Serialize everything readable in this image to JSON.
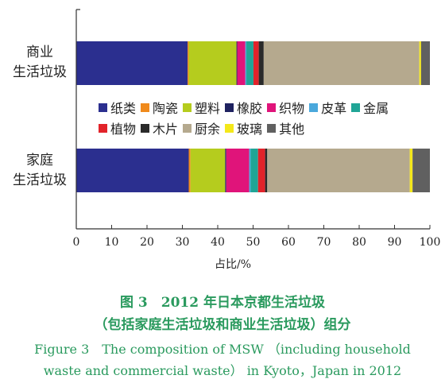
{
  "chart_data": {
    "type": "bar",
    "orientation": "horizontal",
    "stacked": true,
    "categories": [
      "商业\n生活垃圾",
      "家庭\n生活垃圾"
    ],
    "category_lines": [
      [
        "商业",
        "生活垃圾"
      ],
      [
        "家庭",
        "生活垃圾"
      ]
    ],
    "series": [
      {
        "name": "纸类",
        "color": "#2b2f8f",
        "values": [
          31.5,
          31.8
        ]
      },
      {
        "name": "陶瓷",
        "color": "#f08a1c",
        "values": [
          0.3,
          0.5
        ]
      },
      {
        "name": "塑料",
        "color": "#b5cc1e",
        "values": [
          13.5,
          9.8
        ]
      },
      {
        "name": "橡胶",
        "color": "#1f2260",
        "values": [
          0.2,
          0.3
        ]
      },
      {
        "name": "织物",
        "color": "#e0147a",
        "values": [
          2.3,
          6.5
        ]
      },
      {
        "name": "皮革",
        "color": "#4aa8dc",
        "values": [
          0.3,
          0.4
        ]
      },
      {
        "name": "金属",
        "color": "#20a596",
        "values": [
          2.0,
          2.1
        ]
      },
      {
        "name": "植物",
        "color": "#e2232a",
        "values": [
          1.5,
          2.0
        ]
      },
      {
        "name": "木片",
        "color": "#2a2a2a",
        "values": [
          1.4,
          0.6
        ]
      },
      {
        "name": "厨余",
        "color": "#b5a98e",
        "values": [
          44.0,
          40.3
        ]
      },
      {
        "name": "玻璃",
        "color": "#f4e81a",
        "values": [
          0.5,
          0.8
        ]
      },
      {
        "name": "其他",
        "color": "#606060",
        "values": [
          2.5,
          4.9
        ]
      }
    ],
    "xlabel": "占比/%",
    "ylabel": "",
    "xlim": [
      0,
      100
    ],
    "xticks": [
      0,
      10,
      20,
      30,
      40,
      50,
      60,
      70,
      80,
      90,
      100
    ],
    "grid": false,
    "legend_position": "center"
  },
  "legend_rows": [
    [
      "纸类",
      "陶瓷",
      "塑料",
      "橡胶",
      "织物",
      "皮革",
      "金属"
    ],
    [
      "植物",
      "木片",
      "厨余",
      "玻璃",
      "其他"
    ]
  ],
  "caption": {
    "cn_line1": "图 3　2012 年日本京都生活垃圾",
    "cn_line2": "（包括家庭生活垃圾和商业生活垃圾）组分",
    "en_line1": "Figure 3　The composition of MSW （including household",
    "en_line2": "waste and commercial waste） in Kyoto，Japan in 2012"
  }
}
